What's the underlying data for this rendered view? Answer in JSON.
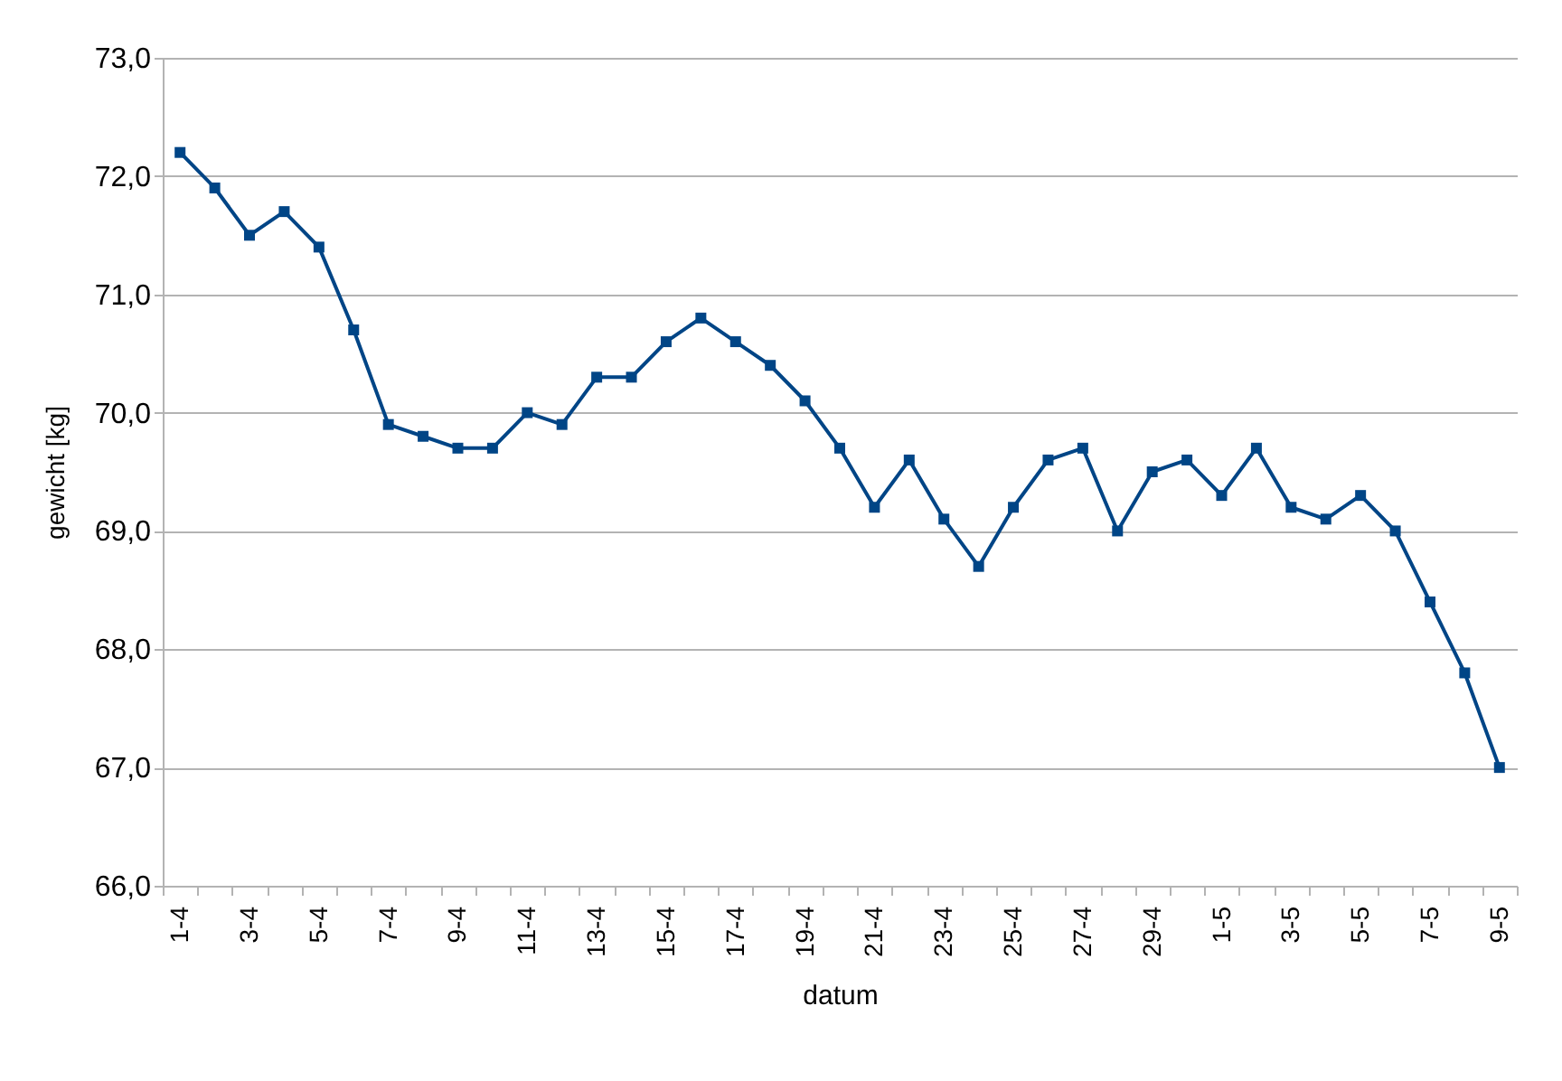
{
  "chart_data": {
    "type": "line",
    "xlabel": "datum",
    "ylabel": "gewicht [kg]",
    "categories": [
      "1-4",
      null,
      "3-4",
      null,
      "5-4",
      null,
      "7-4",
      null,
      "9-4",
      null,
      "11-4",
      null,
      "13-4",
      null,
      "15-4",
      null,
      "17-4",
      null,
      "19-4",
      null,
      "21-4",
      null,
      "23-4",
      null,
      "25-4",
      null,
      "27-4",
      null,
      "29-4",
      null,
      "1-5",
      null,
      "3-5",
      null,
      "5-5",
      null,
      "7-5",
      null,
      "9-5"
    ],
    "series": [
      {
        "color": "#004586",
        "values": [
          72.2,
          71.9,
          71.5,
          71.7,
          71.4,
          70.7,
          69.9,
          69.8,
          69.7,
          69.7,
          70.0,
          69.9,
          70.3,
          70.3,
          70.6,
          70.8,
          70.6,
          70.4,
          70.1,
          69.7,
          69.2,
          69.6,
          69.1,
          68.7,
          69.2,
          69.6,
          69.7,
          69.0,
          69.5,
          69.6,
          69.3,
          69.7,
          69.2,
          69.1,
          69.3,
          69.0,
          68.4,
          67.8,
          67.0
        ]
      }
    ],
    "ylim": [
      66,
      73
    ],
    "yticks": [
      {
        "value": 66,
        "label": "66,0"
      },
      {
        "value": 67,
        "label": "67,0"
      },
      {
        "value": 68,
        "label": "68,0"
      },
      {
        "value": 69,
        "label": "69,0"
      },
      {
        "value": 70,
        "label": "70,0"
      },
      {
        "value": 71,
        "label": "71,0"
      },
      {
        "value": 72,
        "label": "72,0"
      },
      {
        "value": 73,
        "label": "73,0"
      }
    ],
    "grid": "y",
    "marker": "square",
    "line_style": "solid"
  }
}
